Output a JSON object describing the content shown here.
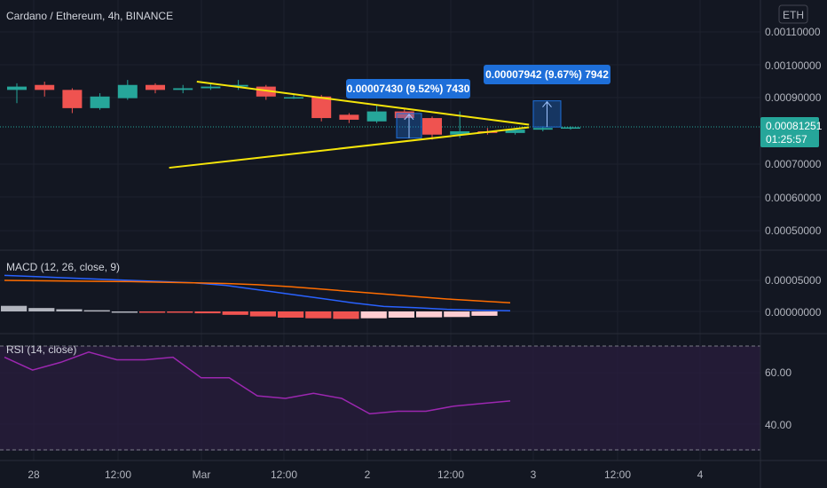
{
  "header": {
    "title": "Cardano / Ethereum, 4h, BINANCE",
    "currency": "ETH"
  },
  "colors": {
    "bg": "#131722",
    "grid": "#1e222d",
    "text": "#b2b5be",
    "up": "#26a69a",
    "down": "#ef5350",
    "trendline": "#f5e50a",
    "macd": "#2962ff",
    "signal": "#ff6d00",
    "rsi": "#9c27b0",
    "hist_up_strong": "#26a69a",
    "hist_down_strong": "#ef5350",
    "hist_down_weak": "#ffcdd2",
    "hist_up_weak": "#b2dfdb",
    "rsi_band": "#2a1d3d",
    "measure_blue": "#1e6fd9",
    "price_tag": "#26a69a"
  },
  "price_axis": {
    "labels": [
      "0.00110000",
      "0.00100000",
      "0.00090000",
      "0.00070000",
      "0.00060000",
      "0.00050000"
    ]
  },
  "current_price": {
    "value": "0.00081251",
    "countdown": "01:25:57"
  },
  "time_axis": {
    "labels": [
      "28",
      "12:00",
      "Mar",
      "12:00",
      "2",
      "12:00",
      "3",
      "12:00",
      "4"
    ]
  },
  "macd": {
    "legend": "MACD (12, 26, close, 9)",
    "axis_labels": [
      "0.00005000",
      "0.00000000"
    ]
  },
  "rsi": {
    "legend": "RSI (14, close)",
    "axis_labels": [
      "60.00",
      "40.00"
    ]
  },
  "measures": [
    {
      "label": "0.00007430 (9.52%) 7430",
      "from": 0.00078,
      "to": 0.000854
    },
    {
      "label": "0.00007942 (9.67%) 7942",
      "from": 0.000813,
      "to": 0.000892
    }
  ],
  "chart_data": {
    "type": "candlestick",
    "interval_hours": 4,
    "price_range": [
      0.00043,
      0.00118
    ],
    "candles": [
      {
        "o": 0.000925,
        "h": 0.000945,
        "l": 0.000885,
        "c": 0.000935
      },
      {
        "o": 0.00094,
        "h": 0.00095,
        "l": 0.000905,
        "c": 0.000925
      },
      {
        "o": 0.000925,
        "h": 0.00093,
        "l": 0.000855,
        "c": 0.00087
      },
      {
        "o": 0.00087,
        "h": 0.000915,
        "l": 0.000865,
        "c": 0.000905
      },
      {
        "o": 0.0009,
        "h": 0.000955,
        "l": 0.000895,
        "c": 0.00094
      },
      {
        "o": 0.00094,
        "h": 0.000945,
        "l": 0.000915,
        "c": 0.000925
      },
      {
        "o": 0.000925,
        "h": 0.00094,
        "l": 0.000915,
        "c": 0.00093
      },
      {
        "o": 0.00093,
        "h": 0.000945,
        "l": 0.000925,
        "c": 0.000935
      },
      {
        "o": 0.000935,
        "h": 0.000955,
        "l": 0.000925,
        "c": 0.00094
      },
      {
        "o": 0.000935,
        "h": 0.00094,
        "l": 0.000895,
        "c": 0.000905
      },
      {
        "o": 0.000902,
        "h": 0.000912,
        "l": 0.000898,
        "c": 0.000903
      },
      {
        "o": 0.000905,
        "h": 0.00091,
        "l": 0.00083,
        "c": 0.00084
      },
      {
        "o": 0.00085,
        "h": 0.000855,
        "l": 0.000825,
        "c": 0.000835
      },
      {
        "o": 0.00083,
        "h": 0.00088,
        "l": 0.000825,
        "c": 0.00086
      },
      {
        "o": 0.00086,
        "h": 0.00087,
        "l": 0.000835,
        "c": 0.00084
      },
      {
        "o": 0.00084,
        "h": 0.000845,
        "l": 0.000775,
        "c": 0.00079
      },
      {
        "o": 0.00079,
        "h": 0.00086,
        "l": 0.00078,
        "c": 0.0008
      },
      {
        "o": 0.0008,
        "h": 0.00081,
        "l": 0.00079,
        "c": 0.000795
      },
      {
        "o": 0.000795,
        "h": 0.00081,
        "l": 0.00079,
        "c": 0.000805
      },
      {
        "o": 0.000805,
        "h": 0.000815,
        "l": 0.0008,
        "c": 0.00081
      },
      {
        "o": 0.000808,
        "h": 0.000815,
        "l": 0.000805,
        "c": 0.000812
      }
    ],
    "trendlines": [
      {
        "from": [
          6.5,
          0.00095
        ],
        "to": [
          18.5,
          0.00082
        ]
      },
      {
        "from": [
          5.5,
          0.00069
        ],
        "to": [
          18.5,
          0.000812
        ]
      }
    ],
    "macd_line": [
      5.8,
      5.6,
      5.4,
      5.2,
      5.0,
      4.8,
      4.6,
      4.2,
      3.5,
      2.8,
      2.1,
      1.4,
      0.8,
      0.6,
      0.35,
      0.2,
      0.1
    ],
    "signal_line": [
      5.0,
      4.95,
      4.9,
      4.85,
      4.8,
      4.7,
      4.6,
      4.5,
      4.3,
      4.0,
      3.6,
      3.2,
      2.8,
      2.4,
      2.0,
      1.7,
      1.4
    ],
    "macd_hist": [
      0.9,
      0.55,
      0.35,
      0.2,
      0.0,
      -0.12,
      -0.2,
      -0.3,
      -0.55,
      -0.8,
      -1.0,
      -1.1,
      -1.2,
      -1.1,
      -1.0,
      -0.95,
      -0.9,
      -0.7
    ],
    "rsi_range": [
      30,
      75
    ],
    "rsi_values": [
      66,
      61,
      64,
      68,
      65,
      65,
      66,
      58,
      58,
      51,
      50,
      52,
      50,
      44,
      45,
      45,
      47,
      48,
      49
    ]
  }
}
